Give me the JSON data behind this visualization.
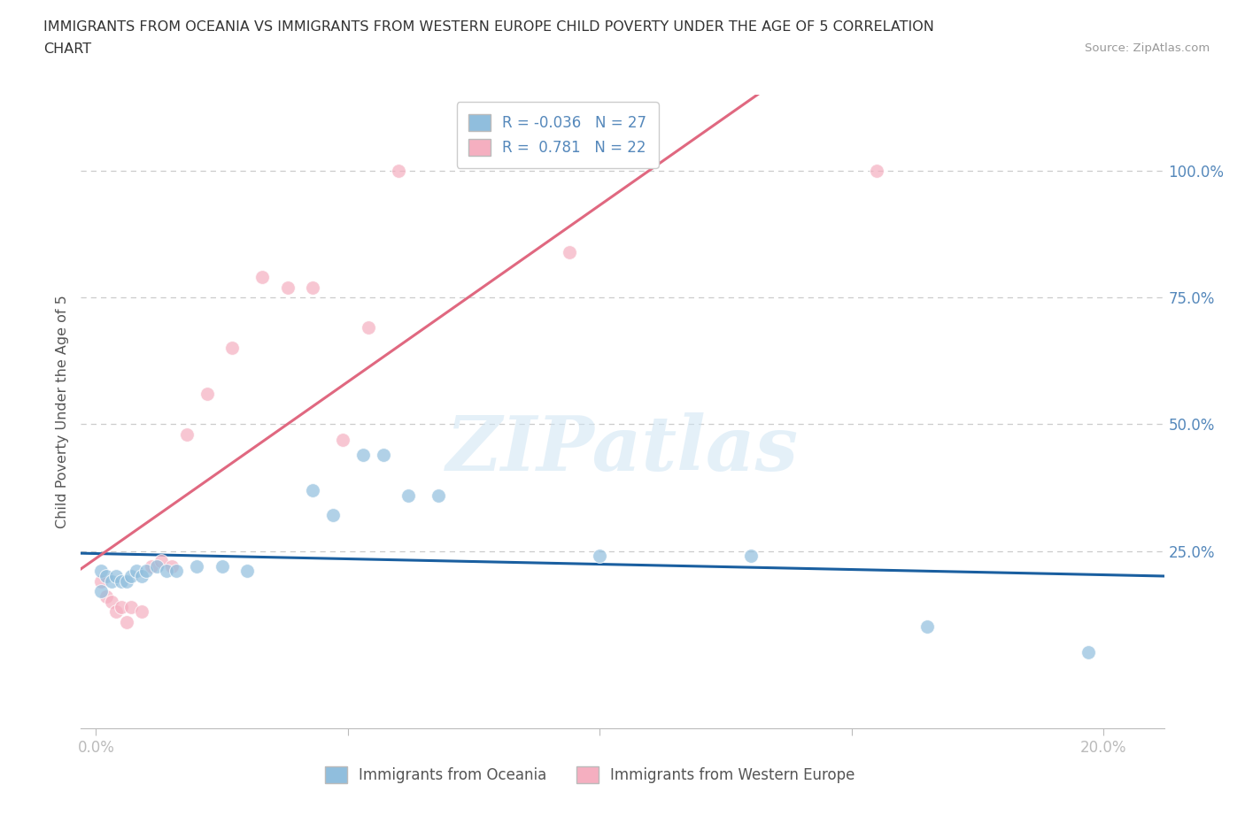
{
  "title_line1": "IMMIGRANTS FROM OCEANIA VS IMMIGRANTS FROM WESTERN EUROPE CHILD POVERTY UNDER THE AGE OF 5 CORRELATION",
  "title_line2": "CHART",
  "source": "Source: ZipAtlas.com",
  "ylabel": "Child Poverty Under the Age of 5",
  "R_oceania": -0.036,
  "N_oceania": 27,
  "R_western_europe": 0.781,
  "N_western_europe": 22,
  "color_oceania": "#90bedd",
  "color_western_europe": "#f5afc0",
  "line_color_oceania": "#1a5fa0",
  "line_color_western_europe": "#e06880",
  "legend_label_oceania": "Immigrants from Oceania",
  "legend_label_western_europe": "Immigrants from Western Europe",
  "background_color": "#ffffff",
  "grid_color": "#cccccc",
  "axis_label_color": "#5588bb",
  "oceania_x": [
    0.001,
    0.001,
    0.002,
    0.003,
    0.004,
    0.005,
    0.006,
    0.007,
    0.008,
    0.009,
    0.01,
    0.012,
    0.014,
    0.016,
    0.02,
    0.025,
    0.03,
    0.043,
    0.047,
    0.053,
    0.057,
    0.062,
    0.068,
    0.1,
    0.13,
    0.165,
    0.197
  ],
  "oceania_y": [
    0.21,
    0.17,
    0.2,
    0.19,
    0.2,
    0.19,
    0.19,
    0.2,
    0.21,
    0.2,
    0.21,
    0.22,
    0.21,
    0.21,
    0.22,
    0.22,
    0.21,
    0.37,
    0.32,
    0.44,
    0.44,
    0.36,
    0.36,
    0.24,
    0.24,
    0.1,
    0.05
  ],
  "western_europe_x": [
    0.001,
    0.002,
    0.003,
    0.004,
    0.005,
    0.006,
    0.007,
    0.009,
    0.011,
    0.013,
    0.015,
    0.018,
    0.022,
    0.027,
    0.033,
    0.038,
    0.043,
    0.049,
    0.054,
    0.06,
    0.094,
    0.155
  ],
  "western_europe_y": [
    0.19,
    0.16,
    0.15,
    0.13,
    0.14,
    0.11,
    0.14,
    0.13,
    0.22,
    0.23,
    0.22,
    0.48,
    0.56,
    0.65,
    0.79,
    0.77,
    0.77,
    0.47,
    0.69,
    1.0,
    0.84,
    1.0
  ],
  "xlim": [
    -0.003,
    0.212
  ],
  "ylim": [
    -0.1,
    1.15
  ],
  "x_tick_positions": [
    0.0,
    0.05,
    0.1,
    0.15,
    0.2
  ],
  "x_tick_labels": [
    "0.0%",
    "",
    "",
    "",
    "20.0%"
  ],
  "y_tick_positions": [
    0.0,
    0.25,
    0.5,
    0.75,
    1.0
  ],
  "y_tick_labels": [
    "",
    "25.0%",
    "50.0%",
    "75.0%",
    "100.0%"
  ],
  "marker_size": 130,
  "marker_alpha": 0.7,
  "watermark_text": "ZIPatlas"
}
